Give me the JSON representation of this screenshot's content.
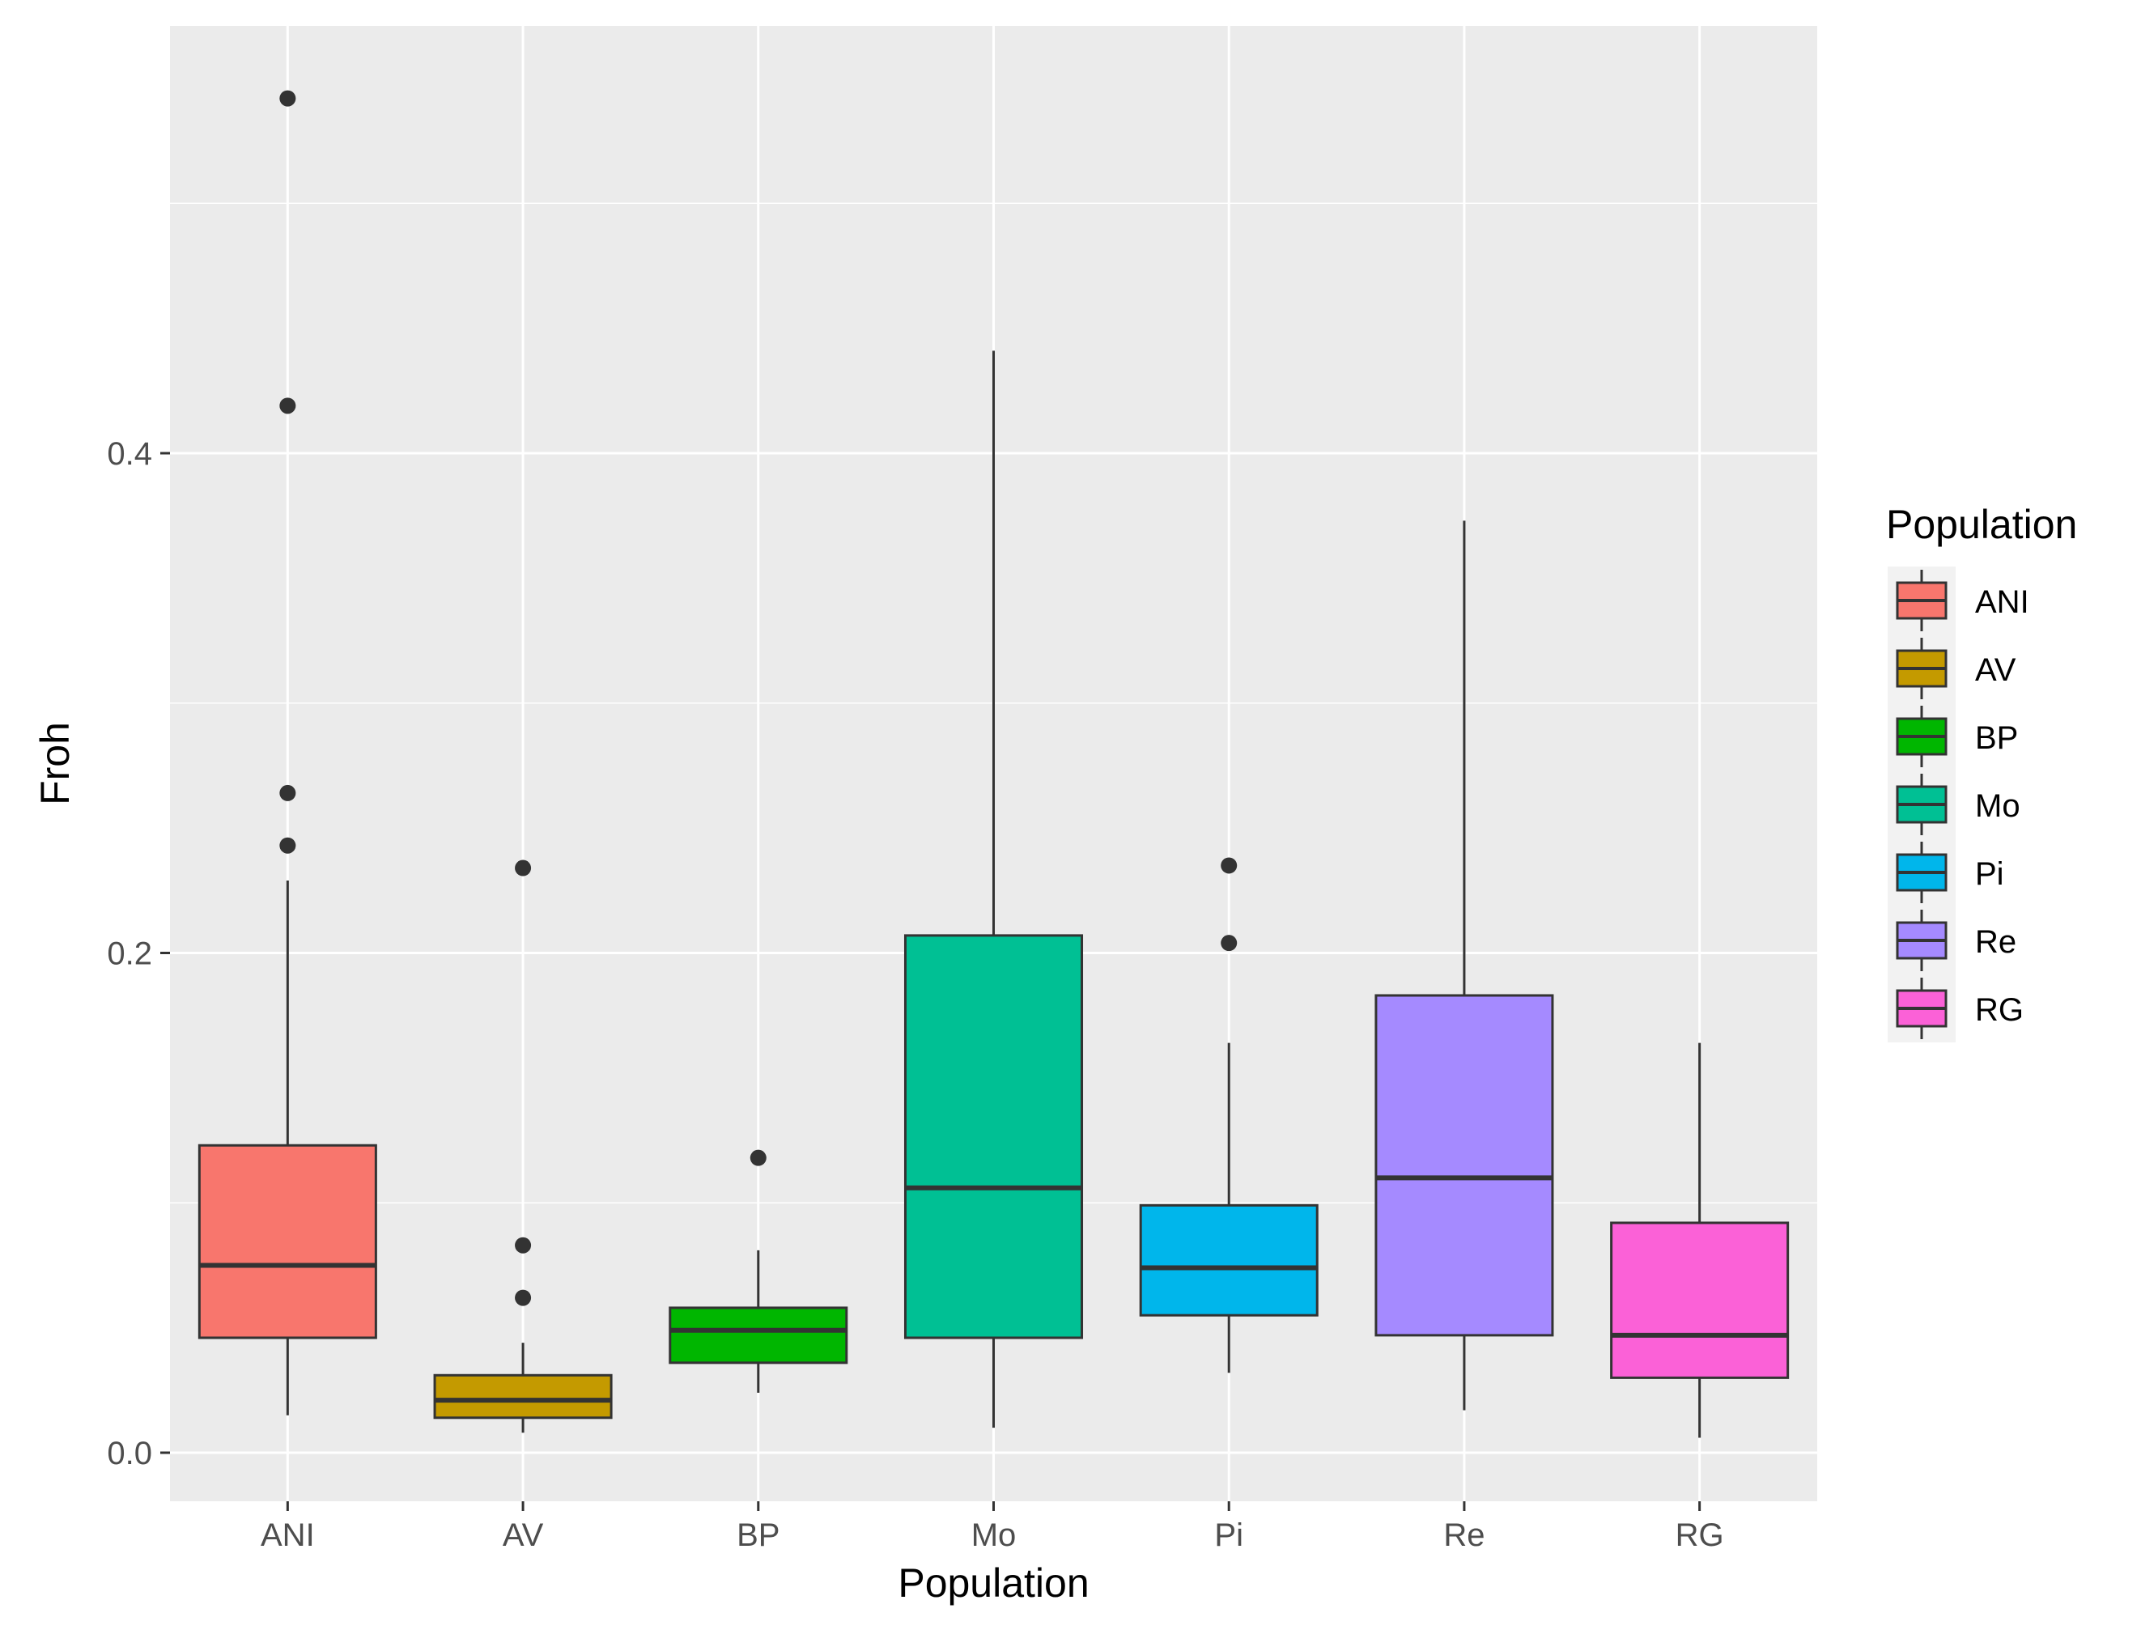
{
  "chart_data": {
    "type": "boxplot",
    "title": "",
    "xlabel": "Population",
    "ylabel": "Froh",
    "ylim": [
      -0.02,
      0.57
    ],
    "yticks": [
      0.0,
      0.2,
      0.4
    ],
    "ytick_labels": [
      "0.0",
      "0.2",
      "0.4"
    ],
    "grid": true,
    "legend": {
      "title": "Population",
      "position": "right"
    },
    "categories": [
      "ANI",
      "AV",
      "BP",
      "Mo",
      "Pi",
      "Re",
      "RG"
    ],
    "series": [
      {
        "name": "ANI",
        "color": "#F8766D",
        "whisker_low": 0.015,
        "q1": 0.046,
        "median": 0.075,
        "q3": 0.123,
        "whisker_high": 0.229,
        "outliers": [
          0.243,
          0.264,
          0.419,
          0.542
        ]
      },
      {
        "name": "AV",
        "color": "#C49A00",
        "whisker_low": 0.008,
        "q1": 0.014,
        "median": 0.021,
        "q3": 0.031,
        "whisker_high": 0.044,
        "outliers": [
          0.062,
          0.083,
          0.234
        ]
      },
      {
        "name": "BP",
        "color": "#00B600",
        "whisker_low": 0.024,
        "q1": 0.036,
        "median": 0.049,
        "q3": 0.058,
        "whisker_high": 0.081,
        "outliers": [
          0.118
        ]
      },
      {
        "name": "Mo",
        "color": "#00C094",
        "whisker_low": 0.01,
        "q1": 0.046,
        "median": 0.106,
        "q3": 0.207,
        "whisker_high": 0.441,
        "outliers": []
      },
      {
        "name": "Pi",
        "color": "#00B6EB",
        "whisker_low": 0.032,
        "q1": 0.055,
        "median": 0.074,
        "q3": 0.099,
        "whisker_high": 0.164,
        "outliers": [
          0.204,
          0.235
        ]
      },
      {
        "name": "Re",
        "color": "#A58AFF",
        "whisker_low": 0.017,
        "q1": 0.047,
        "median": 0.11,
        "q3": 0.183,
        "whisker_high": 0.373,
        "outliers": []
      },
      {
        "name": "RG",
        "color": "#FB61D7",
        "whisker_low": 0.006,
        "q1": 0.03,
        "median": 0.047,
        "q3": 0.092,
        "whisker_high": 0.164,
        "outliers": []
      }
    ]
  }
}
